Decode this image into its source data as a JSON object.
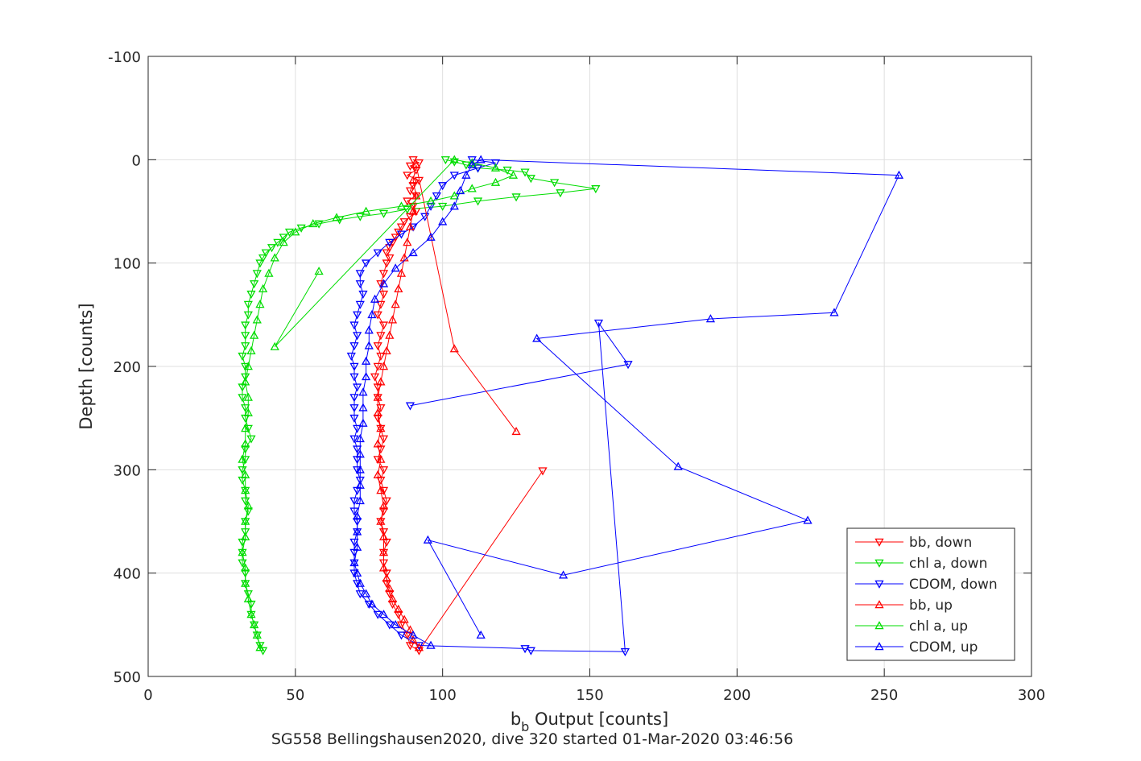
{
  "chart_data": {
    "type": "scatter",
    "title": "",
    "subtitle": "SG558 Bellingshausen2020, dive 320 started 01-Mar-2020 03:46:56",
    "xlabel_main": "b",
    "xlabel_sub": "b",
    "xlabel_rest": " Output [counts]",
    "ylabel": "Depth [counts]",
    "xlim": [
      0,
      300
    ],
    "ylim": [
      -100,
      500
    ],
    "y_reversed": true,
    "grid": true,
    "legend_position": "bottom-right",
    "xticks": [
      0,
      50,
      100,
      150,
      200,
      250,
      300
    ],
    "yticks": [
      -100,
      0,
      100,
      200,
      300,
      400,
      500
    ],
    "xtick_labels": [
      "0",
      "50",
      "100",
      "150",
      "200",
      "250",
      "300"
    ],
    "ytick_labels": [
      "-100",
      "0",
      "100",
      "200",
      "300",
      "400",
      "500"
    ],
    "series": [
      {
        "name": "bb, down",
        "color": "#ff0000",
        "marker": "triangle-down",
        "points": [
          [
            90,
            0
          ],
          [
            92,
            3
          ],
          [
            89,
            6
          ],
          [
            91,
            10
          ],
          [
            88,
            15
          ],
          [
            92,
            20
          ],
          [
            90,
            25
          ],
          [
            89,
            30
          ],
          [
            91,
            35
          ],
          [
            88,
            40
          ],
          [
            90,
            45
          ],
          [
            91,
            50
          ],
          [
            89,
            55
          ],
          [
            87,
            60
          ],
          [
            86,
            65
          ],
          [
            85,
            70
          ],
          [
            84,
            75
          ],
          [
            83,
            80
          ],
          [
            82,
            85
          ],
          [
            81,
            90
          ],
          [
            82,
            95
          ],
          [
            81,
            100
          ],
          [
            80,
            110
          ],
          [
            79,
            120
          ],
          [
            80,
            130
          ],
          [
            79,
            140
          ],
          [
            78,
            150
          ],
          [
            80,
            160
          ],
          [
            79,
            170
          ],
          [
            78,
            180
          ],
          [
            79,
            190
          ],
          [
            78,
            200
          ],
          [
            77,
            210
          ],
          [
            78,
            220
          ],
          [
            78,
            230
          ],
          [
            79,
            240
          ],
          [
            78,
            250
          ],
          [
            79,
            260
          ],
          [
            80,
            270
          ],
          [
            79,
            280
          ],
          [
            78,
            290
          ],
          [
            80,
            300
          ],
          [
            79,
            310
          ],
          [
            80,
            320
          ],
          [
            81,
            330
          ],
          [
            80,
            340
          ],
          [
            79,
            350
          ],
          [
            80,
            360
          ],
          [
            81,
            370
          ],
          [
            80,
            380
          ],
          [
            80,
            390
          ],
          [
            81,
            400
          ],
          [
            81,
            410
          ],
          [
            82,
            420
          ],
          [
            83,
            430
          ],
          [
            85,
            440
          ],
          [
            86,
            450
          ],
          [
            88,
            460
          ],
          [
            89,
            470
          ],
          [
            92,
            475
          ],
          [
            134,
            301
          ]
        ]
      },
      {
        "name": "chl a, down",
        "color": "#00dd00",
        "marker": "triangle-down",
        "points": [
          [
            101,
            0
          ],
          [
            104,
            2
          ],
          [
            108,
            5
          ],
          [
            112,
            8
          ],
          [
            122,
            10
          ],
          [
            128,
            12
          ],
          [
            130,
            18
          ],
          [
            138,
            22
          ],
          [
            152,
            28
          ],
          [
            140,
            32
          ],
          [
            125,
            36
          ],
          [
            112,
            40
          ],
          [
            100,
            45
          ],
          [
            88,
            48
          ],
          [
            80,
            52
          ],
          [
            72,
            55
          ],
          [
            65,
            58
          ],
          [
            58,
            62
          ],
          [
            52,
            66
          ],
          [
            48,
            70
          ],
          [
            46,
            75
          ],
          [
            44,
            80
          ],
          [
            42,
            85
          ],
          [
            40,
            90
          ],
          [
            39,
            95
          ],
          [
            38,
            100
          ],
          [
            37,
            110
          ],
          [
            36,
            120
          ],
          [
            35,
            130
          ],
          [
            34,
            140
          ],
          [
            34,
            150
          ],
          [
            33,
            160
          ],
          [
            33,
            170
          ],
          [
            33,
            180
          ],
          [
            32,
            190
          ],
          [
            33,
            200
          ],
          [
            33,
            210
          ],
          [
            32,
            220
          ],
          [
            32,
            230
          ],
          [
            33,
            240
          ],
          [
            33,
            250
          ],
          [
            34,
            260
          ],
          [
            35,
            270
          ],
          [
            33,
            280
          ],
          [
            33,
            290
          ],
          [
            32,
            300
          ],
          [
            32,
            310
          ],
          [
            33,
            320
          ],
          [
            33,
            330
          ],
          [
            34,
            340
          ],
          [
            33,
            350
          ],
          [
            33,
            360
          ],
          [
            32,
            370
          ],
          [
            32,
            380
          ],
          [
            32,
            390
          ],
          [
            33,
            400
          ],
          [
            33,
            410
          ],
          [
            34,
            420
          ],
          [
            35,
            430
          ],
          [
            35,
            440
          ],
          [
            36,
            450
          ],
          [
            37,
            460
          ],
          [
            38,
            470
          ],
          [
            39,
            475
          ]
        ]
      },
      {
        "name": "CDOM, down",
        "color": "#0000ff",
        "marker": "triangle-down",
        "points": [
          [
            110,
            0
          ],
          [
            118,
            3
          ],
          [
            112,
            8
          ],
          [
            104,
            15
          ],
          [
            100,
            25
          ],
          [
            98,
            35
          ],
          [
            96,
            45
          ],
          [
            94,
            55
          ],
          [
            90,
            65
          ],
          [
            86,
            72
          ],
          [
            82,
            80
          ],
          [
            78,
            90
          ],
          [
            74,
            100
          ],
          [
            72,
            110
          ],
          [
            72,
            120
          ],
          [
            73,
            130
          ],
          [
            72,
            140
          ],
          [
            71,
            150
          ],
          [
            70,
            160
          ],
          [
            71,
            170
          ],
          [
            70,
            180
          ],
          [
            69,
            190
          ],
          [
            70,
            200
          ],
          [
            70,
            210
          ],
          [
            71,
            220
          ],
          [
            70,
            230
          ],
          [
            70,
            240
          ],
          [
            70,
            250
          ],
          [
            71,
            260
          ],
          [
            70,
            270
          ],
          [
            71,
            280
          ],
          [
            71,
            290
          ],
          [
            71,
            300
          ],
          [
            72,
            310
          ],
          [
            71,
            320
          ],
          [
            70,
            330
          ],
          [
            70,
            340
          ],
          [
            71,
            350
          ],
          [
            71,
            360
          ],
          [
            70,
            370
          ],
          [
            70,
            380
          ],
          [
            70,
            390
          ],
          [
            70,
            400
          ],
          [
            71,
            410
          ],
          [
            72,
            420
          ],
          [
            75,
            430
          ],
          [
            78,
            440
          ],
          [
            82,
            450
          ],
          [
            86,
            460
          ],
          [
            92,
            470
          ],
          [
            128,
            473
          ],
          [
            130,
            475
          ],
          [
            162,
            476
          ],
          [
            153,
            158
          ],
          [
            163,
            198
          ],
          [
            89,
            238
          ]
        ]
      },
      {
        "name": "bb, up",
        "color": "#ff0000",
        "marker": "triangle-up",
        "points": [
          [
            92,
            472
          ],
          [
            90,
            465
          ],
          [
            89,
            455
          ],
          [
            87,
            445
          ],
          [
            85,
            435
          ],
          [
            83,
            425
          ],
          [
            82,
            415
          ],
          [
            81,
            405
          ],
          [
            80,
            395
          ],
          [
            80,
            380
          ],
          [
            80,
            365
          ],
          [
            79,
            350
          ],
          [
            80,
            335
          ],
          [
            79,
            320
          ],
          [
            78,
            305
          ],
          [
            79,
            290
          ],
          [
            78,
            275
          ],
          [
            79,
            260
          ],
          [
            78,
            245
          ],
          [
            78,
            230
          ],
          [
            79,
            215
          ],
          [
            80,
            200
          ],
          [
            81,
            185
          ],
          [
            82,
            170
          ],
          [
            83,
            155
          ],
          [
            84,
            140
          ],
          [
            85,
            125
          ],
          [
            86,
            110
          ],
          [
            87,
            95
          ],
          [
            88,
            80
          ],
          [
            89,
            65
          ],
          [
            90,
            50
          ],
          [
            91,
            35
          ],
          [
            90,
            20
          ],
          [
            91,
            5
          ],
          [
            104,
            183
          ],
          [
            125,
            263
          ]
        ]
      },
      {
        "name": "chl a, up",
        "color": "#00dd00",
        "marker": "triangle-up",
        "points": [
          [
            38,
            472
          ],
          [
            37,
            460
          ],
          [
            36,
            450
          ],
          [
            35,
            440
          ],
          [
            34,
            425
          ],
          [
            33,
            410
          ],
          [
            33,
            395
          ],
          [
            32,
            380
          ],
          [
            33,
            365
          ],
          [
            33,
            350
          ],
          [
            34,
            335
          ],
          [
            33,
            320
          ],
          [
            33,
            305
          ],
          [
            32,
            290
          ],
          [
            33,
            275
          ],
          [
            33,
            260
          ],
          [
            34,
            245
          ],
          [
            34,
            230
          ],
          [
            33,
            215
          ],
          [
            34,
            200
          ],
          [
            35,
            185
          ],
          [
            36,
            170
          ],
          [
            37,
            155
          ],
          [
            38,
            140
          ],
          [
            39,
            125
          ],
          [
            41,
            110
          ],
          [
            43,
            95
          ],
          [
            46,
            80
          ],
          [
            50,
            70
          ],
          [
            56,
            62
          ],
          [
            64,
            56
          ],
          [
            74,
            50
          ],
          [
            86,
            45
          ],
          [
            96,
            40
          ],
          [
            104,
            35
          ],
          [
            110,
            28
          ],
          [
            118,
            22
          ],
          [
            124,
            15
          ],
          [
            118,
            8
          ],
          [
            110,
            3
          ],
          [
            104,
            0
          ],
          [
            43,
            181
          ],
          [
            58,
            108
          ]
        ]
      },
      {
        "name": "CDOM, up",
        "color": "#0000ff",
        "marker": "triangle-up",
        "points": [
          [
            96,
            470
          ],
          [
            90,
            460
          ],
          [
            84,
            450
          ],
          [
            80,
            440
          ],
          [
            76,
            430
          ],
          [
            74,
            420
          ],
          [
            72,
            410
          ],
          [
            71,
            400
          ],
          [
            70,
            390
          ],
          [
            71,
            375
          ],
          [
            71,
            360
          ],
          [
            71,
            345
          ],
          [
            72,
            330
          ],
          [
            72,
            315
          ],
          [
            72,
            300
          ],
          [
            72,
            285
          ],
          [
            72,
            270
          ],
          [
            73,
            255
          ],
          [
            73,
            240
          ],
          [
            73,
            225
          ],
          [
            74,
            210
          ],
          [
            74,
            195
          ],
          [
            75,
            180
          ],
          [
            75,
            165
          ],
          [
            76,
            150
          ],
          [
            77,
            135
          ],
          [
            80,
            120
          ],
          [
            84,
            105
          ],
          [
            90,
            90
          ],
          [
            96,
            75
          ],
          [
            100,
            60
          ],
          [
            104,
            45
          ],
          [
            106,
            30
          ],
          [
            108,
            15
          ],
          [
            110,
            5
          ],
          [
            113,
            0
          ],
          [
            255,
            15
          ],
          [
            233,
            148
          ],
          [
            191,
            154
          ],
          [
            132,
            173
          ],
          [
            180,
            297
          ],
          [
            224,
            349
          ],
          [
            141,
            402
          ],
          [
            95,
            368
          ],
          [
            113,
            460
          ]
        ]
      }
    ]
  }
}
